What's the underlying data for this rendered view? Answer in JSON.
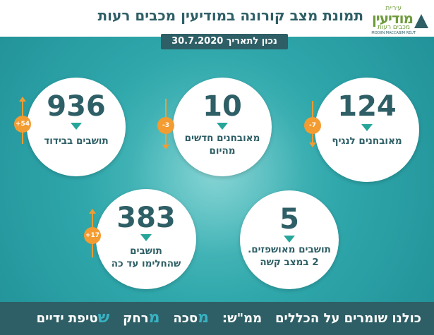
{
  "header": {
    "title": "תמונת מצב קורונה במודיעין מכבים רעות",
    "date": "נכון לתאריך 30.7.2020",
    "logo": {
      "small": "עיריית",
      "main": "מודיעין",
      "sub": "מכבים רעות",
      "tiny": "MODIIN MACCABIM REUT"
    }
  },
  "stats": {
    "confirmed": {
      "value": "124",
      "label": "מאובחנים לנגיף",
      "change": "-7"
    },
    "new_today": {
      "value": "10",
      "label_line1": "מאובחנים חדשים",
      "label_line2": "מהיום",
      "change": "-3"
    },
    "isolation": {
      "value": "936",
      "label": "תושבים בבידוד",
      "change": "+54"
    },
    "hospitalized": {
      "value": "5",
      "label_line1": "תושבים מאושפזים.",
      "label_line2": "2 במצב קשה"
    },
    "recovered": {
      "value": "383",
      "label_line1": "תושבים",
      "label_line2": "שהחלימו עד כה",
      "change": "+17"
    }
  },
  "footer": {
    "prefix": "כולנו שומרים על הכללים",
    "acronym": "ממ\"ש:",
    "rule1_letter": "מ",
    "rule1_rest": "סכה",
    "rule2_letter": "מ",
    "rule2_rest": "רחק",
    "rule3_letter": "ש",
    "rule3_rest": "טיפת ידיים"
  },
  "colors": {
    "background": "#2fa7ab",
    "dark": "#2f5f66",
    "badge": "#f39c32",
    "accent_triangle": "#26a69a",
    "footer_highlight": "#38b2c2"
  }
}
